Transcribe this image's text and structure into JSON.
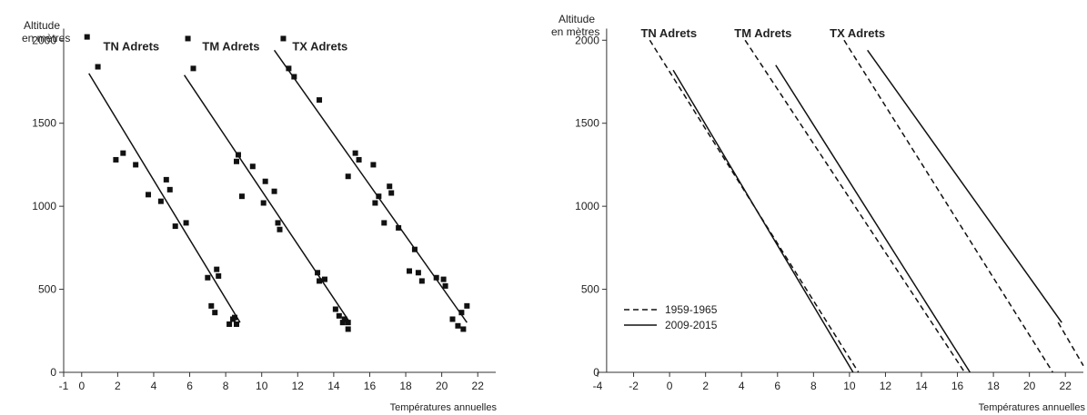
{
  "chart_data": [
    {
      "type": "scatter",
      "ylabel_line1": "Altitude",
      "ylabel_line2": "en mètres",
      "xlabel": "Températures annuelles",
      "xlim": [
        -1,
        23
      ],
      "ylim": [
        0,
        2100
      ],
      "x_ticks": [
        -1,
        0,
        2,
        4,
        6,
        8,
        10,
        12,
        14,
        16,
        18,
        20,
        22
      ],
      "y_ticks": [
        0,
        500,
        1000,
        1500,
        2000
      ],
      "series_labels": [
        {
          "text": "TN Adrets",
          "x": 1.2,
          "y": 1960
        },
        {
          "text": "TM Adrets",
          "x": 6.7,
          "y": 1960
        },
        {
          "text": "TX Adrets",
          "x": 11.7,
          "y": 1960
        }
      ],
      "series": [
        {
          "name": "TN Adrets",
          "points": [
            [
              0.3,
              2020
            ],
            [
              0.9,
              1840
            ],
            [
              1.9,
              1280
            ],
            [
              2.3,
              1320
            ],
            [
              3.0,
              1250
            ],
            [
              3.7,
              1070
            ],
            [
              4.4,
              1030
            ],
            [
              4.7,
              1160
            ],
            [
              4.9,
              1100
            ],
            [
              5.2,
              880
            ],
            [
              5.8,
              900
            ],
            [
              7.0,
              570
            ],
            [
              7.2,
              400
            ],
            [
              7.4,
              360
            ],
            [
              7.5,
              620
            ],
            [
              7.6,
              580
            ],
            [
              8.2,
              290
            ],
            [
              8.4,
              320
            ],
            [
              8.5,
              330
            ],
            [
              8.6,
              290
            ]
          ],
          "fit": [
            [
              0.4,
              1800
            ],
            [
              8.8,
              300
            ]
          ]
        },
        {
          "name": "TM Adrets",
          "points": [
            [
              5.9,
              2010
            ],
            [
              6.2,
              1830
            ],
            [
              8.6,
              1270
            ],
            [
              8.7,
              1310
            ],
            [
              8.9,
              1060
            ],
            [
              9.5,
              1240
            ],
            [
              10.1,
              1020
            ],
            [
              10.2,
              1150
            ],
            [
              10.7,
              1090
            ],
            [
              10.9,
              900
            ],
            [
              11.0,
              860
            ],
            [
              13.1,
              600
            ],
            [
              13.2,
              550
            ],
            [
              13.5,
              560
            ],
            [
              14.1,
              380
            ],
            [
              14.3,
              340
            ],
            [
              14.5,
              300
            ],
            [
              14.6,
              320
            ],
            [
              14.8,
              260
            ],
            [
              14.8,
              300
            ]
          ],
          "fit": [
            [
              5.7,
              1790
            ],
            [
              14.9,
              300
            ]
          ]
        },
        {
          "name": "TX Adrets",
          "points": [
            [
              11.2,
              2010
            ],
            [
              11.5,
              1830
            ],
            [
              11.8,
              1780
            ],
            [
              13.2,
              1640
            ],
            [
              14.8,
              1180
            ],
            [
              15.2,
              1320
            ],
            [
              15.4,
              1280
            ],
            [
              16.2,
              1250
            ],
            [
              16.3,
              1020
            ],
            [
              16.5,
              1060
            ],
            [
              16.8,
              900
            ],
            [
              17.1,
              1120
            ],
            [
              17.2,
              1080
            ],
            [
              17.6,
              870
            ],
            [
              18.2,
              610
            ],
            [
              18.5,
              740
            ],
            [
              18.7,
              600
            ],
            [
              18.9,
              550
            ],
            [
              19.7,
              570
            ],
            [
              20.1,
              560
            ],
            [
              20.2,
              520
            ],
            [
              20.6,
              320
            ],
            [
              20.9,
              280
            ],
            [
              21.1,
              360
            ],
            [
              21.2,
              260
            ],
            [
              21.4,
              400
            ]
          ],
          "fit": [
            [
              10.7,
              1940
            ],
            [
              21.4,
              300
            ]
          ]
        }
      ]
    },
    {
      "type": "line",
      "ylabel_line1": "Altitude",
      "ylabel_line2": "en mètres",
      "xlabel": "Températures annuelles",
      "xlim": [
        -4,
        23
      ],
      "ylim": [
        0,
        2100
      ],
      "x_ticks": [
        -4,
        -2,
        0,
        2,
        4,
        6,
        8,
        10,
        12,
        14,
        16,
        18,
        20,
        22
      ],
      "y_ticks": [
        0,
        500,
        1000,
        1500,
        2000
      ],
      "series_labels": [
        {
          "text": "TN Adrets",
          "x": -1.6,
          "y": 2040
        },
        {
          "text": "TM Adrets",
          "x": 3.6,
          "y": 2040
        },
        {
          "text": "TX Adrets",
          "x": 8.9,
          "y": 2040
        }
      ],
      "legend": {
        "position": "bottom-left",
        "items": [
          {
            "label": "1959-1965",
            "style": "dashed"
          },
          {
            "label": "2009-2015",
            "style": "solid"
          }
        ]
      },
      "series": [
        {
          "name": "TN Adrets 1959-1965",
          "style": "dashed",
          "points": [
            [
              -1.1,
              2000
            ],
            [
              10.5,
              0
            ]
          ]
        },
        {
          "name": "TN Adrets 2009-2015",
          "style": "solid",
          "points": [
            [
              0.2,
              1820
            ],
            [
              10.2,
              0
            ]
          ]
        },
        {
          "name": "TM Adrets 1959-1965",
          "style": "dashed",
          "points": [
            [
              4.2,
              2000
            ],
            [
              16.4,
              0
            ]
          ]
        },
        {
          "name": "TM Adrets 2009-2015",
          "style": "solid",
          "points": [
            [
              5.9,
              1850
            ],
            [
              16.7,
              0
            ]
          ]
        },
        {
          "name": "TX Adrets 1959-1965",
          "style": "dashed",
          "points": [
            [
              9.7,
              2000
            ],
            [
              21.3,
              0
            ]
          ]
        },
        {
          "name": "TX Adrets 2009-2015",
          "style": "solid",
          "points": [
            [
              11.0,
              1940
            ],
            [
              21.8,
              300
            ]
          ]
        },
        {
          "name": "TX Adrets 2009-2015 tail",
          "style": "dashed",
          "points": [
            [
              21.6,
              300
            ],
            [
              23.0,
              40
            ]
          ]
        }
      ]
    }
  ]
}
